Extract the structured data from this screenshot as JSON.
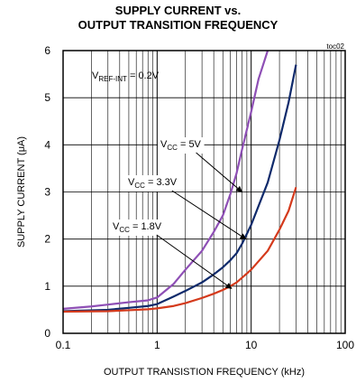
{
  "chart_data": {
    "type": "line",
    "title_line1": "SUPPLY CURRENT vs.",
    "title_line2": "OUTPUT TRANSITION FREQUENCY",
    "code": "toc02",
    "xlabel": "OUTPUT TRANSISTION FREQUENCY (kHz)",
    "ylabel": "SUPPLY CURRENT (μA)",
    "x_scale": "log",
    "xlim": [
      0.1,
      100
    ],
    "ylim": [
      0,
      6
    ],
    "x_ticks": [
      {
        "value": 0.1,
        "label": "0.1"
      },
      {
        "value": 1,
        "label": "1"
      },
      {
        "value": 10,
        "label": "10"
      },
      {
        "value": 100,
        "label": "100"
      }
    ],
    "y_ticks": [
      {
        "value": 0,
        "label": "0"
      },
      {
        "value": 1,
        "label": "1"
      },
      {
        "value": 2,
        "label": "2"
      },
      {
        "value": 3,
        "label": "3"
      },
      {
        "value": 4,
        "label": "4"
      },
      {
        "value": 5,
        "label": "5"
      },
      {
        "value": 6,
        "label": "6"
      }
    ],
    "grid": true,
    "series": [
      {
        "name": "VCC = 5V",
        "color": "#8e4fb5",
        "points": [
          [
            0.1,
            0.52
          ],
          [
            0.2,
            0.57
          ],
          [
            0.3,
            0.61
          ],
          [
            0.5,
            0.66
          ],
          [
            0.8,
            0.7
          ],
          [
            1.0,
            0.76
          ],
          [
            1.5,
            1.05
          ],
          [
            2,
            1.35
          ],
          [
            3,
            1.75
          ],
          [
            4,
            2.15
          ],
          [
            5,
            2.5
          ],
          [
            6,
            2.95
          ],
          [
            7,
            3.4
          ],
          [
            8,
            3.9
          ],
          [
            10,
            4.7
          ],
          [
            12,
            5.4
          ],
          [
            15,
            6.0
          ]
        ]
      },
      {
        "name": "VCC = 3.3V",
        "color": "#0f2a6b",
        "points": [
          [
            0.1,
            0.47
          ],
          [
            0.3,
            0.5
          ],
          [
            0.5,
            0.54
          ],
          [
            0.8,
            0.58
          ],
          [
            1.0,
            0.62
          ],
          [
            1.5,
            0.78
          ],
          [
            2,
            0.9
          ],
          [
            3,
            1.08
          ],
          [
            4,
            1.25
          ],
          [
            5,
            1.4
          ],
          [
            6,
            1.55
          ],
          [
            7,
            1.7
          ],
          [
            8,
            1.9
          ],
          [
            10,
            2.3
          ],
          [
            15,
            3.2
          ],
          [
            20,
            4.1
          ],
          [
            25,
            4.9
          ],
          [
            30,
            5.7
          ]
        ]
      },
      {
        "name": "VCC = 1.8V",
        "color": "#d43a1c",
        "points": [
          [
            0.1,
            0.46
          ],
          [
            0.3,
            0.47
          ],
          [
            0.5,
            0.49
          ],
          [
            0.8,
            0.51
          ],
          [
            1.0,
            0.53
          ],
          [
            1.5,
            0.58
          ],
          [
            2,
            0.64
          ],
          [
            3,
            0.75
          ],
          [
            4,
            0.84
          ],
          [
            5,
            0.92
          ],
          [
            6,
            1.0
          ],
          [
            7,
            1.08
          ],
          [
            8,
            1.18
          ],
          [
            10,
            1.35
          ],
          [
            15,
            1.75
          ],
          [
            20,
            2.2
          ],
          [
            25,
            2.6
          ],
          [
            30,
            3.1
          ]
        ]
      }
    ],
    "annotations": [
      {
        "id": "vref",
        "main": "V",
        "sub": "REF-INT",
        "rest": " = 0.2V"
      },
      {
        "id": "vcc5",
        "main": "V",
        "sub": "CC",
        "rest": " = 5V",
        "series": 0
      },
      {
        "id": "vcc33",
        "main": "V",
        "sub": "CC",
        "rest": " = 3.3V",
        "series": 1
      },
      {
        "id": "vcc18",
        "main": "V",
        "sub": "CC",
        "rest": " = 1.8V",
        "series": 2
      }
    ]
  }
}
